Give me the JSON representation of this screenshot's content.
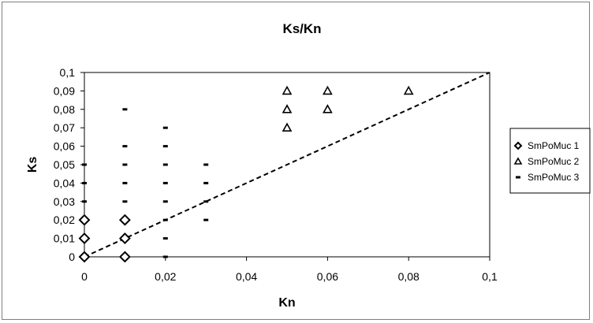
{
  "chart_data": {
    "type": "scatter",
    "title": "Ks/Kn",
    "xlabel": "Kn",
    "ylabel": "Ks",
    "xlim": [
      0,
      0.1
    ],
    "ylim": [
      0,
      0.1
    ],
    "x_ticks": [
      "0",
      "0,02",
      "0,04",
      "0,06",
      "0,08",
      "0,1"
    ],
    "x_tick_values": [
      0,
      0.02,
      0.04,
      0.06,
      0.08,
      0.1
    ],
    "y_ticks": [
      "0",
      "0,01",
      "0,02",
      "0,03",
      "0,04",
      "0,05",
      "0,06",
      "0,07",
      "0,08",
      "0,09",
      "0,1"
    ],
    "y_tick_values": [
      0,
      0.01,
      0.02,
      0.03,
      0.04,
      0.05,
      0.06,
      0.07,
      0.08,
      0.09,
      0.1
    ],
    "grid": false,
    "legend_position": "right",
    "reference_line": {
      "style": "dashed",
      "from": [
        0,
        0
      ],
      "to": [
        0.1,
        0.1
      ]
    },
    "series": [
      {
        "name": "SmPoMuc 1",
        "marker": "diamond",
        "points": [
          [
            0,
            0
          ],
          [
            0,
            0.01
          ],
          [
            0,
            0.02
          ],
          [
            0.01,
            0
          ],
          [
            0.01,
            0.01
          ],
          [
            0.01,
            0.02
          ]
        ]
      },
      {
        "name": "SmPoMuc 2",
        "marker": "triangle",
        "points": [
          [
            0.05,
            0.07
          ],
          [
            0.05,
            0.08
          ],
          [
            0.05,
            0.09
          ],
          [
            0.06,
            0.08
          ],
          [
            0.06,
            0.09
          ],
          [
            0.08,
            0.09
          ]
        ]
      },
      {
        "name": "SmPoMuc 3",
        "marker": "dash",
        "points": [
          [
            0,
            0
          ],
          [
            0,
            0.01
          ],
          [
            0,
            0.02
          ],
          [
            0,
            0.03
          ],
          [
            0,
            0.04
          ],
          [
            0,
            0.05
          ],
          [
            0.01,
            0
          ],
          [
            0.01,
            0.01
          ],
          [
            0.01,
            0.02
          ],
          [
            0.01,
            0.03
          ],
          [
            0.01,
            0.04
          ],
          [
            0.01,
            0.05
          ],
          [
            0.01,
            0.06
          ],
          [
            0.01,
            0.08
          ],
          [
            0.02,
            0
          ],
          [
            0.02,
            0.01
          ],
          [
            0.02,
            0.02
          ],
          [
            0.02,
            0.03
          ],
          [
            0.02,
            0.04
          ],
          [
            0.02,
            0.05
          ],
          [
            0.02,
            0.06
          ],
          [
            0.02,
            0.07
          ],
          [
            0.03,
            0.02
          ],
          [
            0.03,
            0.03
          ],
          [
            0.03,
            0.04
          ],
          [
            0.03,
            0.05
          ]
        ]
      }
    ]
  }
}
